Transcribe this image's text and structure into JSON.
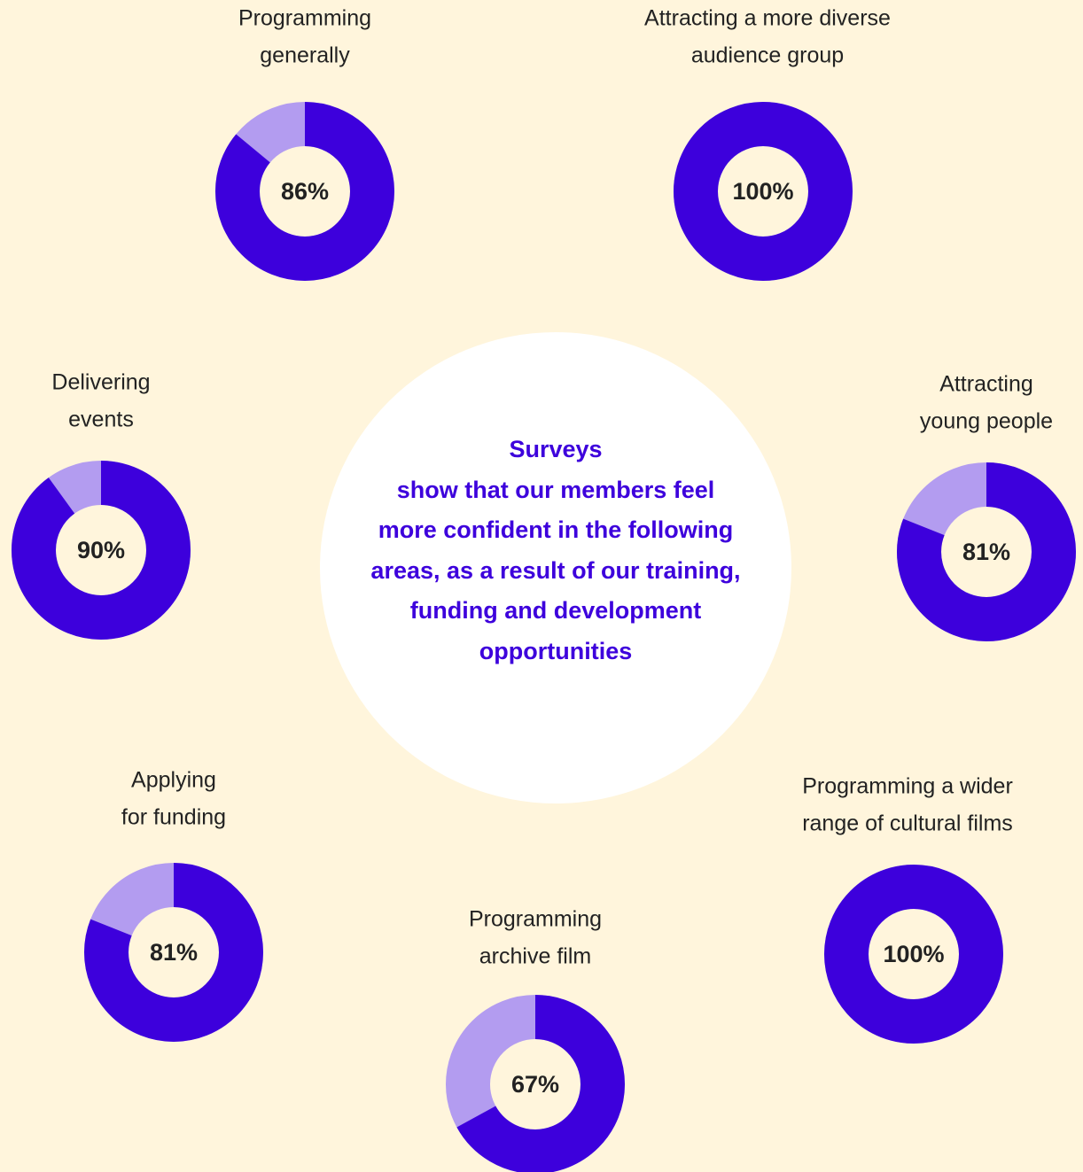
{
  "chart_data": [
    {
      "type": "donut",
      "title": [
        "Programming",
        "generally"
      ],
      "values": [
        86
      ],
      "value_labels": [
        "86%"
      ],
      "color": "#3d00dc",
      "track_color": "#b39cf0"
    },
    {
      "type": "donut",
      "title": [
        "Attracting a more diverse",
        "audience group"
      ],
      "values": [
        100
      ],
      "value_labels": [
        "100%"
      ],
      "color": "#3d00dc",
      "track_color": "#b39cf0"
    },
    {
      "type": "donut",
      "title": [
        "Delivering",
        "events"
      ],
      "values": [
        90
      ],
      "value_labels": [
        "90%"
      ],
      "color": "#3d00dc",
      "track_color": "#b39cf0"
    },
    {
      "type": "donut",
      "title": [
        "Attracting",
        "young people"
      ],
      "values": [
        81
      ],
      "value_labels": [
        "81%"
      ],
      "color": "#3d00dc",
      "track_color": "#b39cf0"
    },
    {
      "type": "donut",
      "title": [
        "Applying",
        "for funding"
      ],
      "values": [
        81
      ],
      "value_labels": [
        "81%"
      ],
      "color": "#3d00dc",
      "track_color": "#b39cf0"
    },
    {
      "type": "donut",
      "title": [
        "Programming a wider",
        "range of cultural films"
      ],
      "values": [
        100
      ],
      "value_labels": [
        "100%"
      ],
      "color": "#3d00dc",
      "track_color": "#b39cf0"
    },
    {
      "type": "donut",
      "title": [
        "Programming",
        "archive film"
      ],
      "values": [
        67
      ],
      "value_labels": [
        "67%"
      ],
      "color": "#3d00dc",
      "track_color": "#b39cf0"
    }
  ],
  "summary": {
    "heading": "Surveys",
    "text": "show that our members feel more confident in the following areas, as a result of our training, funding and development opportunities"
  }
}
